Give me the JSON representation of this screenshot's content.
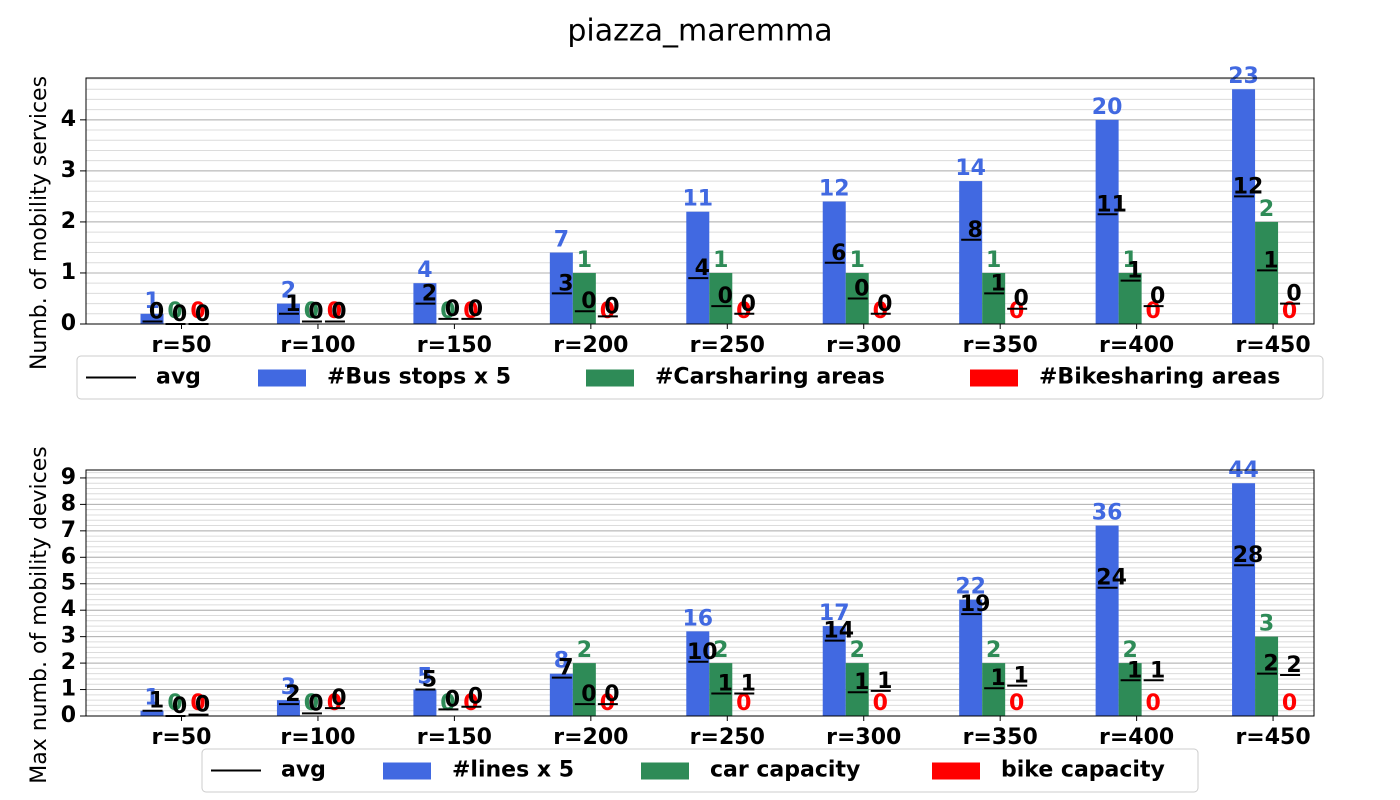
{
  "title": "piazza_maremma",
  "chart_data": [
    {
      "type": "bar",
      "ylabel": "Numb. of mobility services",
      "categories": [
        "r=50",
        "r=100",
        "r=150",
        "r=200",
        "r=250",
        "r=300",
        "r=350",
        "r=400",
        "r=450"
      ],
      "ylim": [
        0,
        4.82
      ],
      "yticks": [
        0,
        1,
        2,
        3,
        4
      ],
      "yminor": 0.2,
      "grid": true,
      "legend": "below",
      "series": [
        {
          "name": "#Bus stops x 5",
          "color": "#4169e1",
          "values": [
            0.2,
            0.4,
            0.8,
            1.4,
            2.2,
            2.4,
            2.8,
            4.0,
            4.6
          ],
          "value_labels": [
            "1",
            "2",
            "4",
            "7",
            "11",
            "12",
            "14",
            "20",
            "23"
          ]
        },
        {
          "name": "#Carsharing areas",
          "color": "#2e8b57",
          "values": [
            0,
            0,
            0,
            1,
            1,
            1,
            1,
            1,
            2
          ],
          "value_labels": [
            "0",
            "0",
            "0",
            "1",
            "1",
            "1",
            "1",
            "1",
            "2"
          ]
        },
        {
          "name": "#Bikesharing areas",
          "color": "#ff0000",
          "values": [
            0,
            0,
            0,
            0,
            0,
            0,
            0,
            0,
            0
          ],
          "value_labels": [
            "0",
            "0",
            "0",
            "0",
            "0",
            "0",
            "0",
            "0",
            "0"
          ]
        }
      ],
      "avg": {
        "name": "avg",
        "color": "#000000",
        "series": [
          {
            "values": [
              0.05,
              0.2,
              0.4,
              0.6,
              0.9,
              1.2,
              1.65,
              2.15,
              2.5
            ],
            "value_labels": [
              "0",
              "1",
              "2",
              "3",
              "4",
              "6",
              "8",
              "11",
              "12"
            ]
          },
          {
            "values": [
              0,
              0.05,
              0.1,
              0.25,
              0.35,
              0.5,
              0.6,
              0.85,
              1.05
            ],
            "value_labels": [
              "0",
              "0",
              "0",
              "0",
              "0",
              "0",
              "1",
              "1",
              "1"
            ]
          },
          {
            "values": [
              0,
              0.05,
              0.1,
              0.15,
              0.2,
              0.2,
              0.3,
              0.35,
              0.4
            ],
            "value_labels": [
              "0",
              "0",
              "0",
              "0",
              "0",
              "0",
              "0",
              "0",
              "0"
            ]
          }
        ]
      }
    },
    {
      "type": "bar",
      "ylabel": "Max numb. of mobility devices",
      "categories": [
        "r=50",
        "r=100",
        "r=150",
        "r=200",
        "r=250",
        "r=300",
        "r=350",
        "r=400",
        "r=450"
      ],
      "ylim": [
        0,
        9.3
      ],
      "yticks": [
        0,
        1,
        2,
        3,
        4,
        5,
        6,
        7,
        8,
        9
      ],
      "yminor": 0.2,
      "grid": true,
      "legend": "below",
      "series": [
        {
          "name": "#lines x 5",
          "color": "#4169e1",
          "values": [
            0.2,
            0.6,
            1.0,
            1.6,
            3.2,
            3.4,
            4.4,
            7.2,
            8.8
          ],
          "value_labels": [
            "1",
            "3",
            "5",
            "8",
            "16",
            "17",
            "22",
            "36",
            "44"
          ]
        },
        {
          "name": "car capacity",
          "color": "#2e8b57",
          "values": [
            0,
            0,
            0,
            2,
            2,
            2,
            2,
            2,
            3
          ],
          "value_labels": [
            "0",
            "0",
            "0",
            "2",
            "2",
            "2",
            "2",
            "2",
            "3"
          ]
        },
        {
          "name": "bike capacity",
          "color": "#ff0000",
          "values": [
            0,
            0,
            0,
            0,
            0,
            0,
            0,
            0,
            0
          ],
          "value_labels": [
            "0",
            "0",
            "0",
            "0",
            "0",
            "0",
            "0",
            "0",
            "0"
          ]
        }
      ],
      "avg": {
        "name": "avg",
        "color": "#000000",
        "series": [
          {
            "values": [
              0.2,
              0.45,
              1.0,
              1.45,
              2.05,
              2.85,
              3.85,
              4.85,
              5.7
            ],
            "value_labels": [
              "1",
              "2",
              "5",
              "7",
              "10",
              "14",
              "19",
              "24",
              "28"
            ]
          },
          {
            "values": [
              0,
              0.1,
              0.25,
              0.45,
              0.85,
              0.9,
              1.05,
              1.35,
              1.6
            ],
            "value_labels": [
              "0",
              "0",
              "0",
              "0",
              "1",
              "1",
              "1",
              "1",
              "2"
            ]
          },
          {
            "values": [
              0.05,
              0.3,
              0.35,
              0.45,
              0.85,
              0.95,
              1.15,
              1.35,
              1.55
            ],
            "value_labels": [
              "0",
              "0",
              "0",
              "0",
              "1",
              "1",
              "1",
              "1",
              "2"
            ]
          }
        ]
      }
    }
  ]
}
